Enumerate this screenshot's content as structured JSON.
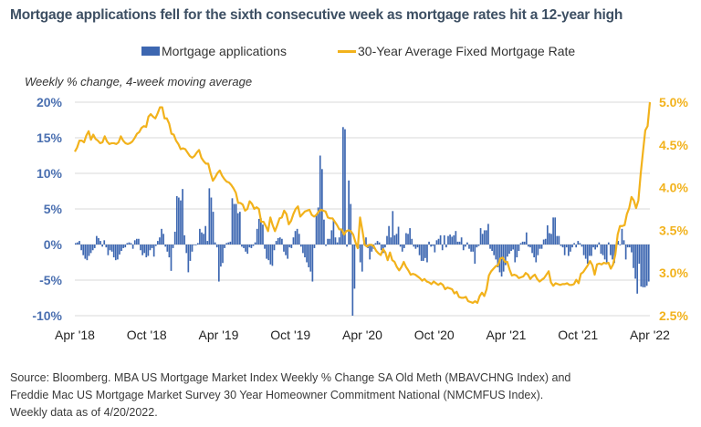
{
  "chart_data": {
    "type": "bar+line",
    "title": "Mortgage applications fell for the sixth consecutive week as mortgage rates hit a 12-year high",
    "subtitle": "Weekly % change, 4-week moving average",
    "legend": {
      "placement": "top-center",
      "entries": [
        "Mortgage applications",
        "30-Year Average Fixed Mortgage Rate"
      ]
    },
    "colors": {
      "applications": "#3d67b1",
      "rate": "#f2b21c",
      "left_axis": "#4a6fb0",
      "right_axis": "#f2b21c",
      "grid": "#d9d9d9",
      "title": "#3d4f63"
    },
    "x_tick_labels": [
      "Apr '18",
      "Oct '18",
      "Apr '19",
      "Oct '19",
      "Apr '20",
      "Oct '20",
      "Apr '21",
      "Oct '21",
      "Apr '22"
    ],
    "x_range": [
      "2018-04",
      "2022-04-20"
    ],
    "left_axis": {
      "ylim": [
        -10,
        20
      ],
      "ticks": [
        20,
        15,
        10,
        5,
        0,
        -5,
        -10
      ],
      "tick_labels": [
        "20%",
        "15%",
        "10%",
        "5%",
        "0%",
        "-5%",
        "-10%"
      ],
      "label": "Weekly % change, 4-week moving average"
    },
    "right_axis": {
      "ylim": [
        2.5,
        5.0
      ],
      "ticks": [
        5.0,
        4.5,
        4.0,
        3.5,
        3.0,
        2.5
      ],
      "tick_labels": [
        "5.0%",
        "4.5%",
        "4.0%",
        "3.5%",
        "3.0%",
        "2.5%"
      ]
    },
    "grid": true,
    "series": [
      {
        "name": "Mortgage applications",
        "type": "bar",
        "axis": "left",
        "frequency": "weekly",
        "values": [
          0.2,
          0.3,
          0.5,
          -0.8,
          -1.5,
          -2.0,
          -2.2,
          -1.6,
          -1.2,
          -0.8,
          -0.5,
          1.2,
          0.9,
          0.5,
          -0.3,
          0.6,
          -0.4,
          -1.5,
          -0.8,
          -1.0,
          -1.8,
          -2.2,
          -2.1,
          -1.4,
          -0.9,
          -0.5,
          -0.4,
          0.2,
          0.3,
          0.2,
          -0.6,
          0.6,
          0.8,
          0.8,
          -0.8,
          -1.5,
          -1.2,
          -1.8,
          -1.6,
          -0.8,
          -0.5,
          -1.7,
          -0.2,
          0.5,
          1.0,
          2.2,
          1.5,
          -0.3,
          -1.0,
          -1.8,
          -3.7,
          -0.5,
          1.8,
          6.8,
          6.6,
          6.2,
          7.8,
          1.3,
          -1.2,
          -3.9,
          -2.3,
          -1.0,
          -0.1,
          -0.1,
          0.2,
          2.2,
          1.7,
          1.5,
          2.6,
          0.5,
          7.9,
          6.6,
          4.6,
          0.3,
          -0.4,
          -5.2,
          -3.1,
          -2.6,
          -0.5,
          0.2,
          0.3,
          0.4,
          6.5,
          5.7,
          5.7,
          4.4,
          4.6,
          -0.3,
          -0.5,
          -1.0,
          -1.3,
          -0.4,
          -0.5,
          -0.2,
          0.3,
          2.2,
          3.6,
          3.7,
          2.8,
          -0.6,
          -2.0,
          -2.2,
          -2.8,
          -3.0,
          -0.8,
          0.5,
          0.9,
          1.0,
          0.8,
          -1.0,
          -1.5,
          -2.0,
          -0.4,
          -0.5,
          1.0,
          1.9,
          2.2,
          1.5,
          -0.3,
          -1.2,
          -1.8,
          -2.5,
          -3.2,
          -3.8,
          -5.2,
          -0.5,
          4.2,
          5.2,
          12.5,
          10.6,
          3.5,
          -0.2,
          0.8,
          0.8,
          2.0,
          3.5,
          1.0,
          0.3,
          1.0,
          2.0,
          16.5,
          16.2,
          -0.3,
          9.0,
          5.7,
          -10.0,
          -6.2,
          -0.2,
          -0.5,
          -2.5,
          -3.8,
          0.4,
          1.0,
          -0.5,
          -2.1,
          -1.0,
          -0.6,
          0.2,
          0.5,
          0.3,
          -0.8,
          -1.2,
          -0.4,
          1.2,
          2.6,
          1.0,
          4.7,
          1.3,
          1.5,
          2.5,
          -0.3,
          -1.0,
          -0.5,
          1.6,
          1.5,
          2.3,
          0.8,
          -0.3,
          -0.6,
          -0.4,
          -1.5,
          -2.3,
          -2.3,
          -1.9,
          -2.5,
          0.4,
          -0.3,
          -0.2,
          -1.1,
          0.6,
          0.8,
          1.3,
          -0.8,
          1.3,
          -0.4,
          1.2,
          1.4,
          1.1,
          1.3,
          1.9,
          0.4,
          0.4,
          1.0,
          -0.8,
          -0.3,
          0.3,
          -0.6,
          -1.0,
          -1.0,
          -2.7,
          -0.4,
          -0.2,
          2.3,
          1.5,
          2.0,
          2.0,
          2.9,
          -0.6,
          -0.9,
          -1.5,
          -2.1,
          -3.2,
          -3.9,
          -4.5,
          -3.8,
          -2.9,
          -1.7,
          -1.3,
          -0.9,
          -0.7,
          -2.5,
          -1.8,
          -0.9,
          0.2,
          0.4,
          0.4,
          1.7,
          -0.3,
          -0.4,
          -1.2,
          -1.8,
          -2.5,
          -1.5,
          -0.6,
          -0.6,
          0.7,
          0.8,
          2.7,
          1.6,
          1.5,
          3.8,
          3.8,
          1.2,
          1.2,
          -0.2,
          -0.4,
          -1.5,
          -0.4,
          -1.6,
          -1.0,
          -0.4,
          0.2,
          -0.4,
          0.5,
          0.2,
          -0.3,
          -1.5,
          -2.0,
          -2.7,
          -1.6,
          -1.6,
          -0.4,
          -0.7,
          -0.4,
          0.3,
          -1.3,
          -1.5,
          -2.1,
          -2.5,
          0.3,
          -1.5,
          -2.1,
          -2.6,
          -0.6,
          0.5,
          -0.1,
          2.2,
          0.6,
          -2.1,
          -0.4,
          -0.4,
          -1.1,
          -3.3,
          -4.8,
          -6.9,
          -2.7,
          -5.9,
          -6.0,
          -6.0,
          -5.8,
          -5.2
        ]
      },
      {
        "name": "30-Year Average Fixed Mortgage Rate",
        "type": "line",
        "axis": "right",
        "frequency": "weekly",
        "values": [
          4.42,
          4.47,
          4.55,
          4.55,
          4.53,
          4.61,
          4.66,
          4.56,
          4.62,
          4.57,
          4.55,
          4.52,
          4.53,
          4.6,
          4.54,
          4.51,
          4.52,
          4.52,
          4.51,
          4.53,
          4.6,
          4.55,
          4.52,
          4.51,
          4.52,
          4.54,
          4.58,
          4.63,
          4.65,
          4.7,
          4.72,
          4.71,
          4.83,
          4.86,
          4.83,
          4.81,
          4.87,
          4.94,
          4.94,
          4.81,
          4.81,
          4.75,
          4.63,
          4.62,
          4.55,
          4.51,
          4.45,
          4.46,
          4.45,
          4.41,
          4.37,
          4.35,
          4.37,
          4.41,
          4.44,
          4.35,
          4.31,
          4.28,
          4.28,
          4.17,
          4.08,
          4.12,
          4.17,
          4.2,
          4.14,
          4.1,
          4.07,
          4.06,
          4.03,
          3.99,
          3.94,
          3.82,
          3.82,
          3.8,
          3.73,
          3.75,
          3.84,
          3.81,
          3.75,
          3.77,
          3.75,
          3.6,
          3.6,
          3.55,
          3.49,
          3.65,
          3.56,
          3.49,
          3.56,
          3.64,
          3.65,
          3.73,
          3.69,
          3.57,
          3.61,
          3.69,
          3.75,
          3.78,
          3.66,
          3.69,
          3.72,
          3.73,
          3.74,
          3.68,
          3.66,
          3.68,
          3.72,
          3.74,
          3.73,
          3.72,
          3.65,
          3.64,
          3.64,
          3.6,
          3.56,
          3.51,
          3.51,
          3.45,
          3.49,
          3.5,
          3.49,
          3.45,
          3.36,
          3.29,
          3.65,
          3.5,
          3.33,
          3.31,
          3.33,
          3.33,
          3.31,
          3.26,
          3.23,
          3.21,
          3.28,
          3.24,
          3.15,
          3.24,
          3.15,
          3.13,
          3.07,
          3.03,
          3.07,
          3.13,
          3.07,
          3.03,
          2.98,
          2.99,
          2.98,
          2.96,
          2.94,
          2.91,
          2.93,
          2.9,
          2.89,
          2.87,
          2.9,
          2.88,
          2.86,
          2.88,
          2.86,
          2.81,
          2.83,
          2.82,
          2.81,
          2.76,
          2.78,
          2.72,
          2.71,
          2.71,
          2.72,
          2.67,
          2.66,
          2.65,
          2.67,
          2.65,
          2.73,
          2.77,
          2.73,
          2.81,
          2.97,
          3.02,
          3.05,
          3.08,
          3.09,
          3.17,
          3.18,
          3.13,
          3.13,
          3.04,
          2.97,
          2.98,
          2.97,
          2.94,
          2.95,
          2.96,
          3.0,
          2.98,
          2.93,
          2.96,
          2.98,
          2.93,
          2.9,
          2.92,
          2.94,
          2.98,
          3.02,
          2.89,
          2.85,
          2.88,
          2.87,
          2.86,
          2.87,
          2.87,
          2.88,
          2.86,
          2.86,
          2.87,
          2.92,
          2.88,
          2.99,
          3.01,
          3.05,
          3.09,
          3.14,
          3.09,
          2.98,
          3.1,
          3.11,
          3.1,
          3.12,
          3.11,
          3.12,
          3.05,
          3.1,
          3.22,
          3.45,
          3.55,
          3.55,
          3.56,
          3.69,
          3.76,
          3.89,
          3.85,
          3.76,
          3.85,
          4.16,
          4.42,
          4.67,
          4.72,
          5.0
        ]
      }
    ]
  },
  "source": {
    "lines": [
      "Source: Bloomberg. MBA US Mortgage Market Index Weekly % Change SA Old Meth (MBAVCHNG Index) and",
      "Freddie Mac US Mortgage Market Survey 30 Year Homeowner Commitment National (NMCMFUS Index).",
      "Weekly data as of 4/20/2022."
    ]
  }
}
